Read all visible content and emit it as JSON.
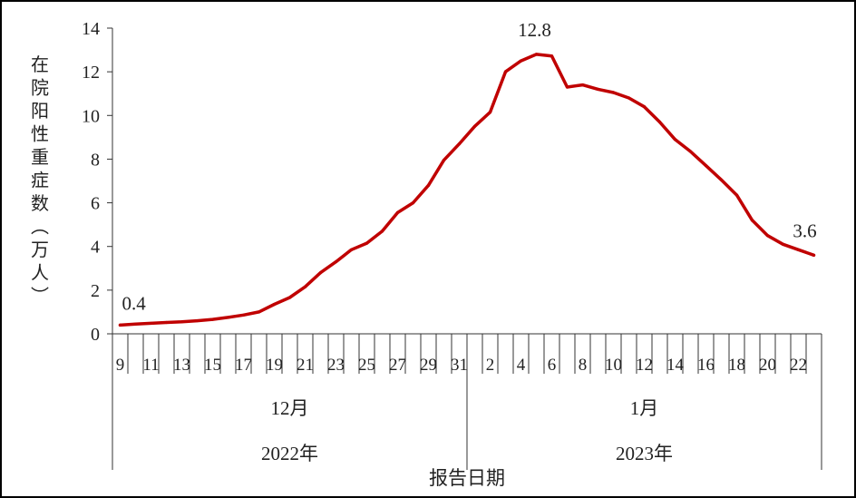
{
  "chart_data": {
    "type": "line",
    "title": "",
    "ylabel": "在院阳性重症数（万人）",
    "xlabel": "报告日期",
    "ylim": [
      0,
      14
    ],
    "yticks": [
      0,
      2,
      4,
      6,
      8,
      10,
      12,
      14
    ],
    "grid": false,
    "legend": "none",
    "line_color": "#c00000",
    "x": [
      "12-09",
      "12-10",
      "12-11",
      "12-12",
      "12-13",
      "12-14",
      "12-15",
      "12-16",
      "12-17",
      "12-18",
      "12-19",
      "12-20",
      "12-21",
      "12-22",
      "12-23",
      "12-24",
      "12-25",
      "12-26",
      "12-27",
      "12-28",
      "12-29",
      "12-30",
      "12-31",
      "01-01",
      "01-02",
      "01-03",
      "01-04",
      "01-05",
      "01-06",
      "01-07",
      "01-08",
      "01-09",
      "01-10",
      "01-11",
      "01-12",
      "01-13",
      "01-14",
      "01-15",
      "01-16",
      "01-17",
      "01-18",
      "01-19",
      "01-20",
      "01-21",
      "01-22",
      "01-23"
    ],
    "tick_labels": [
      "9",
      "",
      "11",
      "",
      "13",
      "",
      "15",
      "",
      "17",
      "",
      "19",
      "",
      "21",
      "",
      "23",
      "",
      "25",
      "",
      "27",
      "",
      "29",
      "",
      "31",
      "",
      "2",
      "",
      "4",
      "",
      "6",
      "",
      "8",
      "",
      "10",
      "",
      "12",
      "",
      "14",
      "",
      "16",
      "",
      "18",
      "",
      "20",
      "",
      "22",
      ""
    ],
    "series": [
      {
        "values": [
          0.4,
          0.45,
          0.48,
          0.52,
          0.55,
          0.6,
          0.66,
          0.75,
          0.86,
          1.0,
          1.35,
          1.66,
          2.15,
          2.8,
          3.3,
          3.85,
          4.15,
          4.7,
          5.55,
          6.0,
          6.8,
          7.95,
          8.7,
          9.5,
          10.15,
          12.0,
          12.5,
          12.8,
          12.72,
          11.3,
          11.4,
          11.2,
          11.05,
          10.8,
          10.4,
          9.7,
          8.9,
          8.35,
          7.7,
          7.05,
          6.35,
          5.2,
          4.5,
          4.1,
          3.85,
          3.6
        ]
      }
    ],
    "annotations": [
      {
        "index": 0,
        "label": "0.4"
      },
      {
        "index": 27,
        "label": "12.8"
      },
      {
        "index": 45,
        "label": "3.6"
      }
    ],
    "groups": {
      "months": [
        {
          "label": "12月",
          "start": 0,
          "end": 22
        },
        {
          "label": "1月",
          "start": 23,
          "end": 45
        }
      ],
      "years": [
        {
          "label": "2022年",
          "start": 0,
          "end": 22
        },
        {
          "label": "2023年",
          "start": 23,
          "end": 45
        }
      ]
    }
  }
}
